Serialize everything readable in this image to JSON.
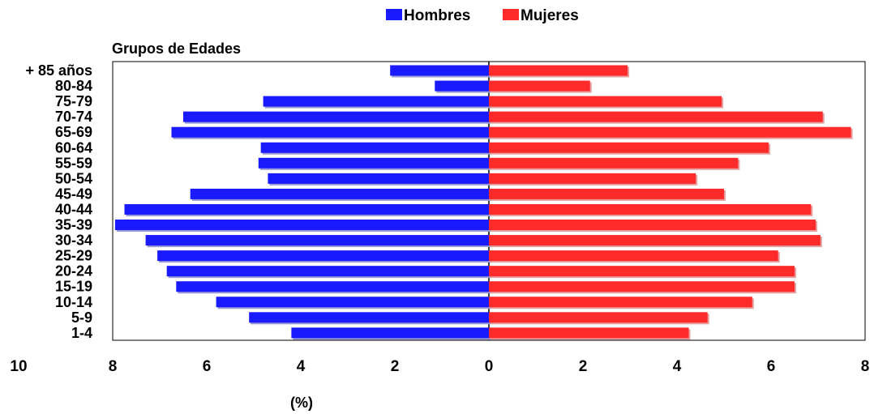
{
  "chart_data": {
    "type": "bar",
    "orientation": "horizontal",
    "subtype": "population-pyramid",
    "title": "",
    "ylabel": "Grupos de Edades",
    "xlabel": "(%)",
    "categories": [
      "+ 85 años",
      "80-84",
      "75-79",
      "70-74",
      "65-69",
      "60-64",
      "55-59",
      "50-54",
      "45-49",
      "40-44",
      "35-39",
      "30-34",
      "25-29",
      "20-24",
      "15-19",
      "10-14",
      "5-9",
      "1-4"
    ],
    "series": [
      {
        "name": "Hombres",
        "color": "#1a1aff",
        "side": "left",
        "values": [
          2.1,
          1.15,
          4.8,
          6.5,
          6.75,
          4.85,
          4.9,
          4.7,
          6.35,
          7.75,
          7.95,
          7.3,
          7.05,
          6.85,
          6.65,
          5.8,
          5.1,
          4.2
        ]
      },
      {
        "name": "Mujeres",
        "color": "#ff2a2a",
        "side": "right",
        "values": [
          2.95,
          2.15,
          4.95,
          7.1,
          7.7,
          5.95,
          5.3,
          4.4,
          5.0,
          6.85,
          6.95,
          7.05,
          6.15,
          6.5,
          6.5,
          5.6,
          4.65,
          4.25
        ]
      }
    ],
    "x_ticks": [
      "10",
      "8",
      "6",
      "4",
      "2",
      "0",
      "2",
      "4",
      "6",
      "8"
    ],
    "xlim_left": 10,
    "xlim_right": 8,
    "legend_position": "top-center",
    "grid": false
  }
}
